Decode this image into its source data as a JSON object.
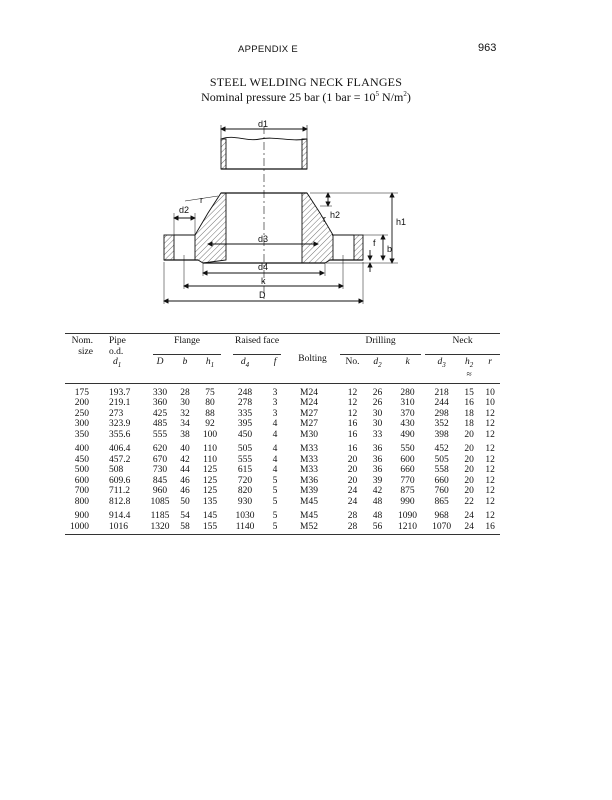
{
  "header": {
    "section": "APPENDIX  E",
    "page_number": "963"
  },
  "title": "STEEL WELDING NECK FLANGES",
  "subtitle": "Nominal pressure 25 bar (1 bar = 10",
  "subtitle_sup": "5",
  "subtitle_end": " N/m",
  "subtitle_sup2": "2",
  "subtitle_close": ")",
  "diagram": {
    "labels": {
      "d1": "d1",
      "d2": "d2",
      "d3": "d3",
      "d4": "d4",
      "k": "k",
      "D": "D",
      "r": "r",
      "h1": "h1",
      "h2": "h2",
      "f": "f",
      "b": "b"
    }
  },
  "table": {
    "groups": {
      "nom": "Nom.",
      "nom2": "size",
      "pipe": "Pipe",
      "pipe2": "o.d.",
      "flange": "Flange",
      "raised_face": "Raised face",
      "bolting": "Bolting",
      "drilling": "Drilling",
      "neck": "Neck"
    },
    "symbols": {
      "d1": "d",
      "d1_sub": "1",
      "D": "D",
      "b": "b",
      "h1": "h",
      "h1_sub": "1",
      "d4": "d",
      "d4_sub": "4",
      "f": "f",
      "no": "No.",
      "d2": "d",
      "d2_sub": "2",
      "k": "k",
      "d3": "d",
      "d3_sub": "3",
      "h2": "h",
      "h2_sub": "2",
      "h2_approx": "≈",
      "r": "r"
    },
    "rows": [
      [
        "175",
        "193.7",
        "330",
        "28",
        "75",
        "248",
        "3",
        "M24",
        "12",
        "26",
        "280",
        "218",
        "15",
        "10"
      ],
      [
        "200",
        "219.1",
        "360",
        "30",
        "80",
        "278",
        "3",
        "M24",
        "12",
        "26",
        "310",
        "244",
        "16",
        "10"
      ],
      [
        "250",
        "273",
        "425",
        "32",
        "88",
        "335",
        "3",
        "M27",
        "12",
        "30",
        "370",
        "298",
        "18",
        "12"
      ],
      [
        "300",
        "323.9",
        "485",
        "34",
        "92",
        "395",
        "4",
        "M27",
        "16",
        "30",
        "430",
        "352",
        "18",
        "12"
      ],
      [
        "350",
        "355.6",
        "555",
        "38",
        "100",
        "450",
        "4",
        "M30",
        "16",
        "33",
        "490",
        "398",
        "20",
        "12"
      ],
      [
        "400",
        "406.4",
        "620",
        "40",
        "110",
        "505",
        "4",
        "M33",
        "16",
        "36",
        "550",
        "452",
        "20",
        "12"
      ],
      [
        "450",
        "457.2",
        "670",
        "42",
        "110",
        "555",
        "4",
        "M33",
        "20",
        "36",
        "600",
        "505",
        "20",
        "12"
      ],
      [
        "500",
        "508",
        "730",
        "44",
        "125",
        "615",
        "4",
        "M33",
        "20",
        "36",
        "660",
        "558",
        "20",
        "12"
      ],
      [
        "600",
        "609.6",
        "845",
        "46",
        "125",
        "720",
        "5",
        "M36",
        "20",
        "39",
        "770",
        "660",
        "20",
        "12"
      ],
      [
        "700",
        "711.2",
        "960",
        "46",
        "125",
        "820",
        "5",
        "M39",
        "24",
        "42",
        "875",
        "760",
        "20",
        "12"
      ],
      [
        "800",
        "812.8",
        "1085",
        "50",
        "135",
        "930",
        "5",
        "M45",
        "24",
        "48",
        "990",
        "865",
        "22",
        "12"
      ],
      [
        "900",
        "914.4",
        "1185",
        "54",
        "145",
        "1030",
        "5",
        "M45",
        "28",
        "48",
        "1090",
        "968",
        "24",
        "12"
      ],
      [
        "1000",
        "1016",
        "1320",
        "58",
        "155",
        "1140",
        "5",
        "M52",
        "28",
        "56",
        "1210",
        "1070",
        "24",
        "16"
      ]
    ]
  }
}
